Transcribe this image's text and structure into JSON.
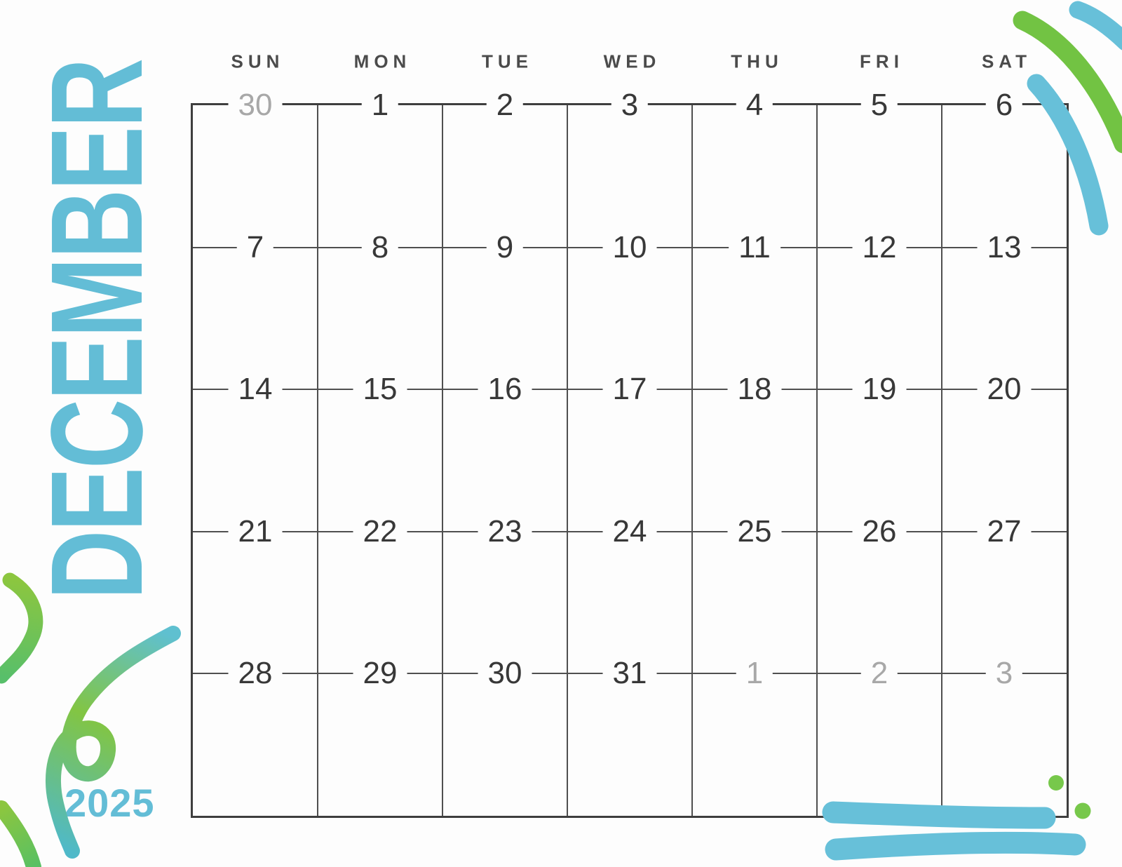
{
  "title": {
    "month": "DECEMBER",
    "year": "2025"
  },
  "calendar": {
    "weekdays": [
      "SUN",
      "MON",
      "TUE",
      "WED",
      "THU",
      "FRI",
      "SAT"
    ],
    "rows": [
      [
        {
          "label": "30",
          "muted": true
        },
        {
          "label": "1",
          "muted": false
        },
        {
          "label": "2",
          "muted": false
        },
        {
          "label": "3",
          "muted": false
        },
        {
          "label": "4",
          "muted": false
        },
        {
          "label": "5",
          "muted": false
        },
        {
          "label": "6",
          "muted": false
        }
      ],
      [
        {
          "label": "7",
          "muted": false
        },
        {
          "label": "8",
          "muted": false
        },
        {
          "label": "9",
          "muted": false
        },
        {
          "label": "10",
          "muted": false
        },
        {
          "label": "11",
          "muted": false
        },
        {
          "label": "12",
          "muted": false
        },
        {
          "label": "13",
          "muted": false
        }
      ],
      [
        {
          "label": "14",
          "muted": false
        },
        {
          "label": "15",
          "muted": false
        },
        {
          "label": "16",
          "muted": false
        },
        {
          "label": "17",
          "muted": false
        },
        {
          "label": "18",
          "muted": false
        },
        {
          "label": "19",
          "muted": false
        },
        {
          "label": "20",
          "muted": false
        }
      ],
      [
        {
          "label": "21",
          "muted": false
        },
        {
          "label": "22",
          "muted": false
        },
        {
          "label": "23",
          "muted": false
        },
        {
          "label": "24",
          "muted": false
        },
        {
          "label": "25",
          "muted": false
        },
        {
          "label": "26",
          "muted": false
        },
        {
          "label": "27",
          "muted": false
        }
      ],
      [
        {
          "label": "28",
          "muted": false
        },
        {
          "label": "29",
          "muted": false
        },
        {
          "label": "30",
          "muted": false
        },
        {
          "label": "31",
          "muted": false
        },
        {
          "label": "1",
          "muted": true
        },
        {
          "label": "2",
          "muted": true
        },
        {
          "label": "3",
          "muted": true
        }
      ]
    ]
  },
  "palette": {
    "teal": "#63bdd6",
    "green": "#72c343",
    "limeGreen": "#8cc63f",
    "dotGreen": "#77c84b",
    "skyBlue": "#67c0d9",
    "headerGray": "#4b4b4b",
    "dateDark": "#383838",
    "dateMuted": "#a8a8a8",
    "lineGray": "#4f4f4f",
    "borderGray": "#3e3e3e",
    "pageBg": "#fdfdfd"
  }
}
